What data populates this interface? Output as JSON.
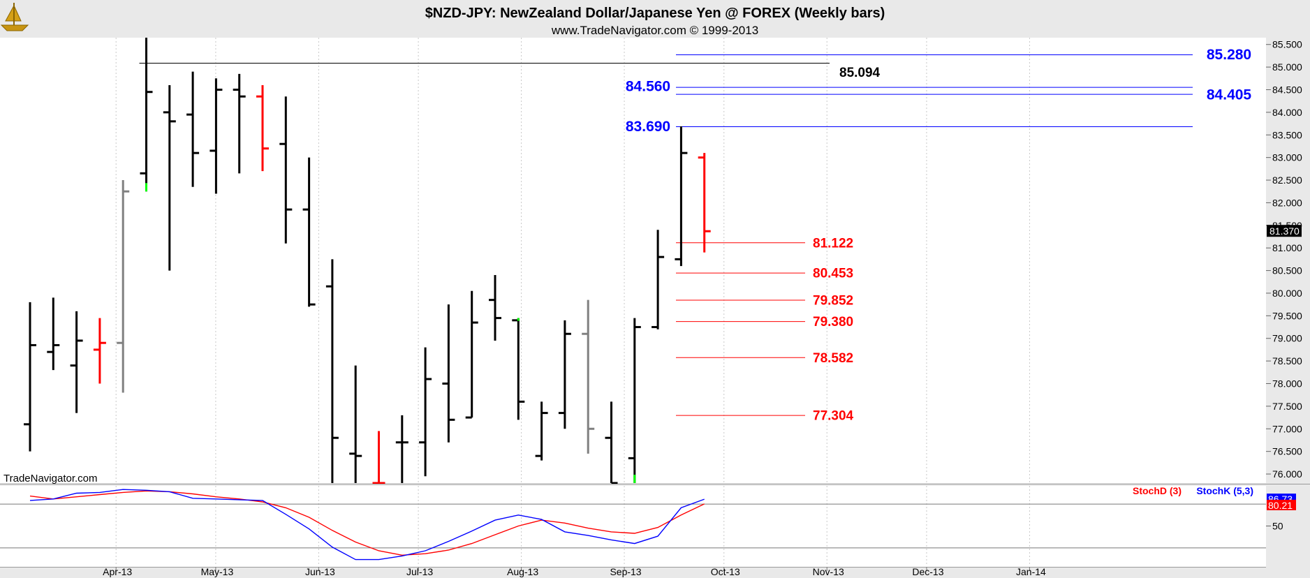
{
  "header": {
    "title": "$NZD-JPY:  NewZealand Dollar/Japanese Yen @ FOREX  (Weekly bars)",
    "subtitle": "www.TradeNavigator.com © 1999-2013",
    "watermark": "TradeNavigator.com"
  },
  "colors": {
    "up": "#000000",
    "down": "#ff0000",
    "neutral": "#808080",
    "marker": "#00ff00",
    "blue": "#0000ff",
    "red": "#ff0000",
    "grid": "#c8c8c8",
    "background": "#ffffff"
  },
  "chart_data": [
    {
      "type": "ohlc",
      "ylim": [
        75.8,
        85.65
      ],
      "y_ticks": [
        "85.500",
        "85.000",
        "84.500",
        "84.000",
        "83.500",
        "83.000",
        "82.500",
        "82.000",
        "81.500",
        "81.000",
        "80.500",
        "80.000",
        "79.500",
        "79.000",
        "78.500",
        "78.000",
        "77.500",
        "77.000",
        "76.500",
        "76.000"
      ],
      "x_labels": [
        "Apr-13",
        "May-13",
        "Jun-13",
        "Jul-13",
        "Aug-13",
        "Sep-13",
        "Oct-13",
        "Nov-13",
        "Dec-13",
        "Jan-14"
      ],
      "last_price": "81.370",
      "bars": [
        {
          "week": "2013-03-04",
          "open": 77.1,
          "high": 79.8,
          "low": 76.5,
          "close": 78.85,
          "color": "up"
        },
        {
          "week": "2013-03-11",
          "open": 78.7,
          "high": 79.9,
          "low": 78.3,
          "close": 78.85,
          "color": "up"
        },
        {
          "week": "2013-03-18",
          "open": 78.4,
          "high": 79.6,
          "low": 77.35,
          "close": 78.95,
          "color": "up"
        },
        {
          "week": "2013-03-25",
          "open": 78.75,
          "high": 79.45,
          "low": 78.0,
          "close": 78.9,
          "color": "down"
        },
        {
          "week": "2013-04-01",
          "open": 78.9,
          "high": 82.5,
          "low": 77.8,
          "close": 82.25,
          "color": "neutral"
        },
        {
          "week": "2013-04-08",
          "open": 82.65,
          "high": 85.65,
          "low": 82.25,
          "close": 84.45,
          "color": "up",
          "marker": "low"
        },
        {
          "week": "2013-04-15",
          "open": 84.0,
          "high": 84.6,
          "low": 80.5,
          "close": 83.8,
          "color": "up"
        },
        {
          "week": "2013-04-22",
          "open": 83.95,
          "high": 84.9,
          "low": 82.35,
          "close": 83.1,
          "color": "up"
        },
        {
          "week": "2013-04-29",
          "open": 83.15,
          "high": 84.75,
          "low": 82.2,
          "close": 84.5,
          "color": "up"
        },
        {
          "week": "2013-05-06",
          "open": 84.5,
          "high": 84.85,
          "low": 82.65,
          "close": 84.35,
          "color": "up"
        },
        {
          "week": "2013-05-13",
          "open": 84.35,
          "high": 84.6,
          "low": 82.7,
          "close": 83.2,
          "color": "down"
        },
        {
          "week": "2013-05-20",
          "open": 83.3,
          "high": 84.35,
          "low": 81.1,
          "close": 81.85,
          "color": "up"
        },
        {
          "week": "2013-05-27",
          "open": 81.85,
          "high": 83.0,
          "low": 79.7,
          "close": 79.75,
          "color": "up"
        },
        {
          "week": "2013-06-03",
          "open": 80.15,
          "high": 80.75,
          "low": 75.8,
          "close": 76.8,
          "color": "up"
        },
        {
          "week": "2013-06-10",
          "open": 76.45,
          "high": 78.4,
          "low": 75.8,
          "close": 76.4,
          "color": "up"
        },
        {
          "week": "2013-06-17",
          "open": 75.8,
          "high": 76.95,
          "low": 75.8,
          "close": 75.8,
          "color": "down"
        },
        {
          "week": "2013-06-24",
          "open": 76.7,
          "high": 77.3,
          "low": 75.8,
          "close": 76.7,
          "color": "up"
        },
        {
          "week": "2013-07-01",
          "open": 76.7,
          "high": 78.8,
          "low": 75.95,
          "close": 78.1,
          "color": "up"
        },
        {
          "week": "2013-07-08",
          "open": 78.0,
          "high": 79.75,
          "low": 76.7,
          "close": 77.2,
          "color": "up"
        },
        {
          "week": "2013-07-15",
          "open": 77.25,
          "high": 80.05,
          "low": 77.25,
          "close": 79.35,
          "color": "up"
        },
        {
          "week": "2013-07-22",
          "open": 79.85,
          "high": 80.4,
          "low": 78.95,
          "close": 79.45,
          "color": "up"
        },
        {
          "week": "2013-07-29",
          "open": 79.4,
          "high": 79.45,
          "low": 77.2,
          "close": 77.6,
          "color": "up",
          "marker": "high"
        },
        {
          "week": "2013-08-05",
          "open": 76.4,
          "high": 77.6,
          "low": 76.3,
          "close": 77.35,
          "color": "up"
        },
        {
          "week": "2013-08-12",
          "open": 77.35,
          "high": 79.4,
          "low": 77.0,
          "close": 79.1,
          "color": "up"
        },
        {
          "week": "2013-08-19",
          "open": 79.1,
          "high": 79.85,
          "low": 76.45,
          "close": 77.0,
          "color": "neutral"
        },
        {
          "week": "2013-08-26",
          "open": 76.8,
          "high": 77.6,
          "low": 75.8,
          "close": 75.8,
          "color": "up"
        },
        {
          "week": "2013-09-02",
          "open": 76.35,
          "high": 79.45,
          "low": 75.8,
          "close": 79.25,
          "color": "up",
          "marker": "low"
        },
        {
          "week": "2013-09-09",
          "open": 79.25,
          "high": 81.4,
          "low": 79.2,
          "close": 80.8,
          "color": "up"
        },
        {
          "week": "2013-09-16",
          "open": 80.75,
          "high": 83.69,
          "low": 80.6,
          "close": 83.1,
          "color": "up"
        },
        {
          "week": "2013-09-23",
          "open": 83.0,
          "high": 83.1,
          "low": 80.9,
          "close": 81.37,
          "color": "down"
        }
      ],
      "levels": [
        {
          "value": 85.094,
          "label": "85.094",
          "color": "black"
        },
        {
          "value": 85.28,
          "label": "85.280",
          "color": "blue"
        },
        {
          "value": 84.56,
          "label": "84.560",
          "color": "blue"
        },
        {
          "value": 84.405,
          "label": "84.405",
          "color": "blue"
        },
        {
          "value": 83.69,
          "label": "83.690",
          "color": "blue"
        },
        {
          "value": 81.122,
          "label": "81.122",
          "color": "red"
        },
        {
          "value": 80.453,
          "label": "80.453",
          "color": "red"
        },
        {
          "value": 79.852,
          "label": "79.852",
          "color": "red"
        },
        {
          "value": 79.38,
          "label": "79.380",
          "color": "red"
        },
        {
          "value": 78.582,
          "label": "78.582",
          "color": "red"
        },
        {
          "value": 77.304,
          "label": "77.304",
          "color": "red"
        }
      ]
    },
    {
      "type": "line",
      "ylim": [
        -5,
        105
      ],
      "y_ticks": [
        "50"
      ],
      "last_k": "86.73",
      "last_d": "80.21",
      "legend": [
        "StochD (3)",
        "StochK (5,3)"
      ],
      "series": [
        {
          "name": "StochD (3)",
          "color": "red",
          "values": [
            91,
            87,
            90,
            93,
            96,
            98,
            97,
            94,
            90,
            87,
            83,
            75,
            62,
            44,
            28,
            16,
            10,
            12,
            17,
            26,
            38,
            50,
            58,
            54,
            47,
            42,
            40,
            48,
            65,
            80.21
          ]
        },
        {
          "name": "StochK (5,3)",
          "color": "blue",
          "values": [
            85,
            87,
            95,
            96,
            100,
            99,
            97,
            88,
            87,
            86,
            85,
            66,
            46,
            21,
            4,
            4,
            9,
            16,
            29,
            43,
            58,
            65,
            59,
            42,
            37,
            31,
            26,
            36,
            75,
            86.73
          ]
        }
      ]
    }
  ]
}
